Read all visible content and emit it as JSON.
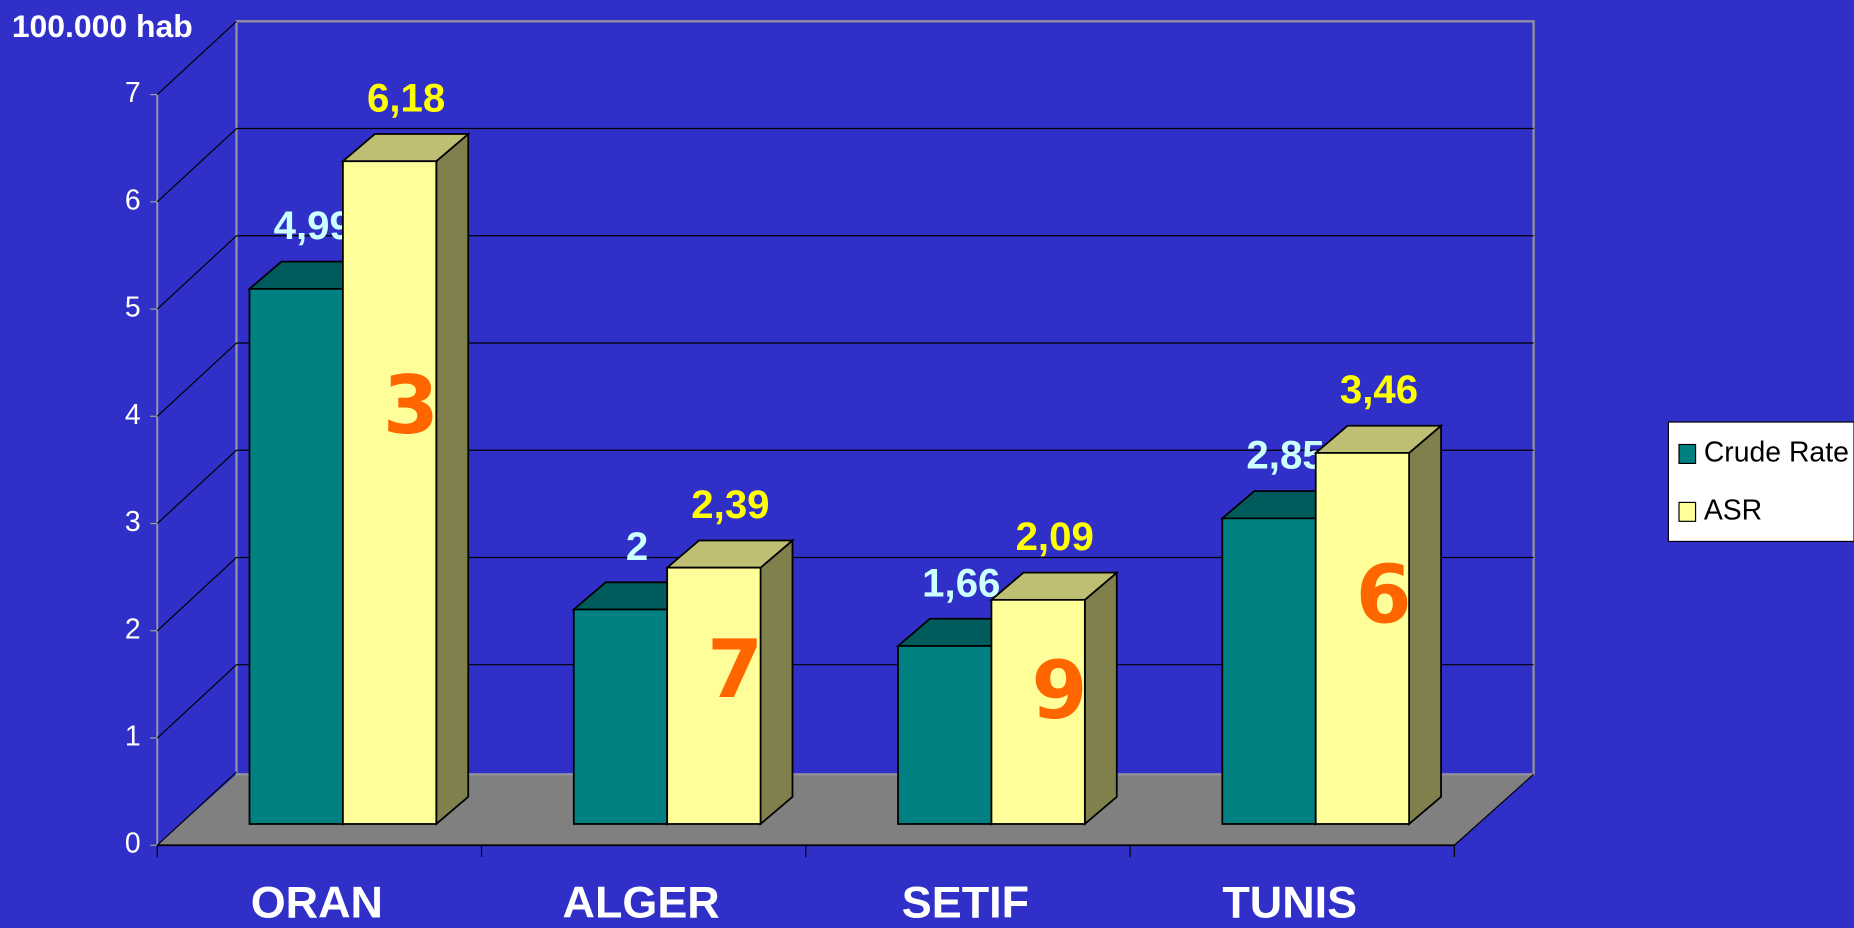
{
  "chart_data": {
    "type": "bar3d",
    "y_axis_label": "100.000 hab",
    "categories": [
      "ORAN",
      "ALGER",
      "SETIF",
      "TUNIS"
    ],
    "series": [
      {
        "name": "Crude Rate",
        "color": "#008080",
        "values": [
          4.99,
          2,
          1.66,
          2.85
        ],
        "value_labels": [
          "4,99",
          "2",
          "1,66",
          "2,85"
        ],
        "label_color": "#ccffff"
      },
      {
        "name": "ASR",
        "color": "#ffff99",
        "values": [
          6.18,
          2.39,
          2.09,
          3.46
        ],
        "value_labels": [
          "6,18",
          "2,39",
          "2,09",
          "3,46"
        ],
        "label_color": "#ffff00"
      }
    ],
    "annotations": [
      "3",
      "7",
      "9",
      "6"
    ],
    "ylim": [
      0,
      7
    ],
    "yticks": [
      0,
      1,
      2,
      3,
      4,
      5,
      6,
      7
    ],
    "grid": true,
    "legend": "right"
  }
}
